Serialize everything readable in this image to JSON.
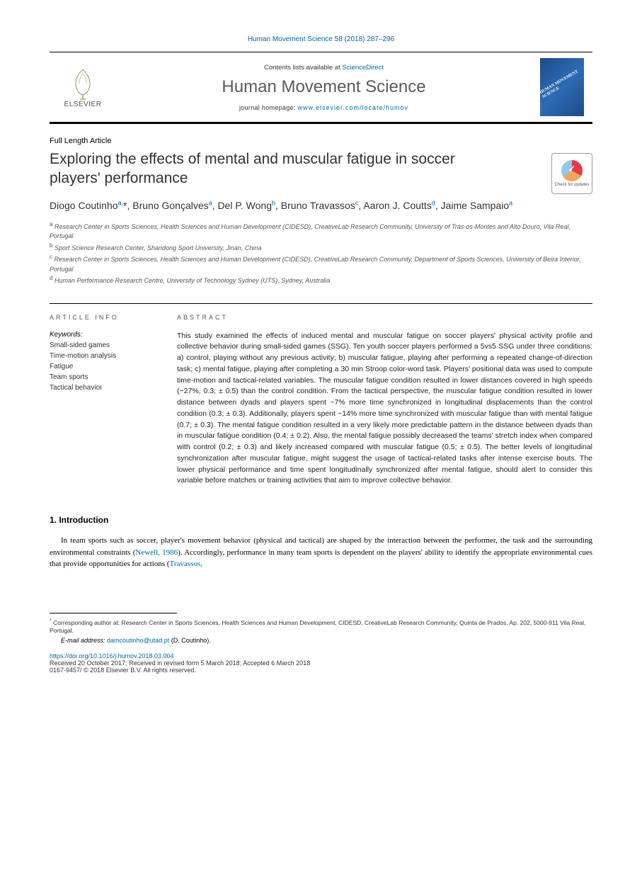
{
  "citation": "Human Movement Science 58 (2018) 287–296",
  "journal_box": {
    "publisher": "ELSEVIER",
    "contents_prefix": "Contents lists available at ",
    "contents_link": "ScienceDirect",
    "journal_name": "Human Movement Science",
    "homepage_prefix": "journal homepage: ",
    "homepage_url": "www.elsevier.com/locate/humov",
    "cover_text": "HUMAN\nMOVEMENT\nSCIENCE"
  },
  "article_type": "Full Length Article",
  "title": "Exploring the effects of mental and muscular fatigue in soccer players' performance",
  "check_updates": "Check for updates",
  "authors_html": "Diogo Coutinho<sup>a,</sup>*, Bruno Gonçalves<sup>a</sup>, Del P. Wong<sup>b</sup>, Bruno Travassos<sup>c</sup>, Aaron J. Coutts<sup>d</sup>, Jaime Sampaio<sup>a</sup>",
  "affiliations": [
    {
      "sup": "a",
      "text": "Research Center in Sports Sciences, Health Sciences and Human Development (CIDESD), CreativeLab Research Community, University of Trás-os-Montes and Alto Douro, Vila Real, Portugal"
    },
    {
      "sup": "b",
      "text": "Sport Science Research Center, Shandong Sport University, Jinan, China"
    },
    {
      "sup": "c",
      "text": "Research Center in Sports Sciences, Health Sciences and Human Development (CIDESD), CreativeLab Research Community, Department of Sports Sciences, University of Beira Interior, Portugal"
    },
    {
      "sup": "d",
      "text": "Human Performance Research Centre, University of Technology Sydney (UTS), Sydney, Australia"
    }
  ],
  "info": {
    "header": "ARTICLE INFO",
    "keywords_label": "Keywords:",
    "keywords": [
      "Small-sided games",
      "Time-motion analysis",
      "Fatigue",
      "Team sports",
      "Tactical behavior"
    ]
  },
  "abstract": {
    "header": "ABSTRACT",
    "text": "This study examined the effects of induced mental and muscular fatigue on soccer players' physical activity profile and collective behavior during small-sided games (SSG). Ten youth soccer players performed a 5vs5 SSG under three conditions: a) control, playing without any previous activity; b) muscular fatigue, playing after performing a repeated change-of-direction task; c) mental fatigue, playing after completing a 30 min Stroop color-word task. Players' positional data was used to compute time-motion and tactical-related variables. The muscular fatigue condition resulted in lower distances covered in high speeds (−27%, 0.3; ± 0.5) than the control condition. From the tactical perspective, the muscular fatigue condition resulted in lower distance between dyads and players spent ~7% more time synchronized in longitudinal displacements than the control condition (0.3; ± 0.3). Additionally, players spent ~14% more time synchronized with muscular fatigue than with mental fatigue (0.7; ± 0.3). The mental fatigue condition resulted in a very likely more predictable pattern in the distance between dyads than in muscular fatigue condition (0.4; ± 0.2). Also, the mental fatigue possibly decreased the teams' stretch index when compared with control (0.2; ± 0.3) and likely increased compared with muscular fatigue (0.5; ± 0.5). The better levels of longitudinal synchronization after muscular fatigue, might suggest the usage of tactical-related tasks after intense exercise bouts. The lower physical performance and time spent longitudinally synchronized after mental fatigue, should alert to consider this variable before matches or training activities that aim to improve collective behavior."
  },
  "introduction": {
    "heading": "1. Introduction",
    "text_before": "In team sports such as soccer, player's movement behavior (physical and tactical) are shaped by the interaction between the performer, the task and the surrounding environmental constraints (",
    "ref1": "Newell, 1986",
    "text_mid": "). Accordingly, performance in many team sports is dependent on the players' ability to identify the appropriate environmental cues that provide opportunities for actions (",
    "ref2": "Travassos,"
  },
  "footer": {
    "corresponding_sup": "*",
    "corresponding": "Corresponding author at: Research Center in Sports Sciences, Health Sciences and Human Development, CIDESD, CreativeLab Research Community, Quinta de Prados, Ap. 202, 5000-911 Vila Real, Portugal.",
    "email_label": "E-mail address: ",
    "email": "damcoutinho@utad.pt",
    "email_suffix": " (D. Coutinho).",
    "doi": "https://doi.org/10.1016/j.humov.2018.03.004",
    "received": "Received 20 October 2017; Received in revised form 5 March 2018; Accepted 6 March 2018",
    "copyright": "0167-9457/ © 2018 Elsevier B.V. All rights reserved."
  },
  "colors": {
    "link": "#0067a5",
    "text": "#000000",
    "muted": "#555555"
  }
}
